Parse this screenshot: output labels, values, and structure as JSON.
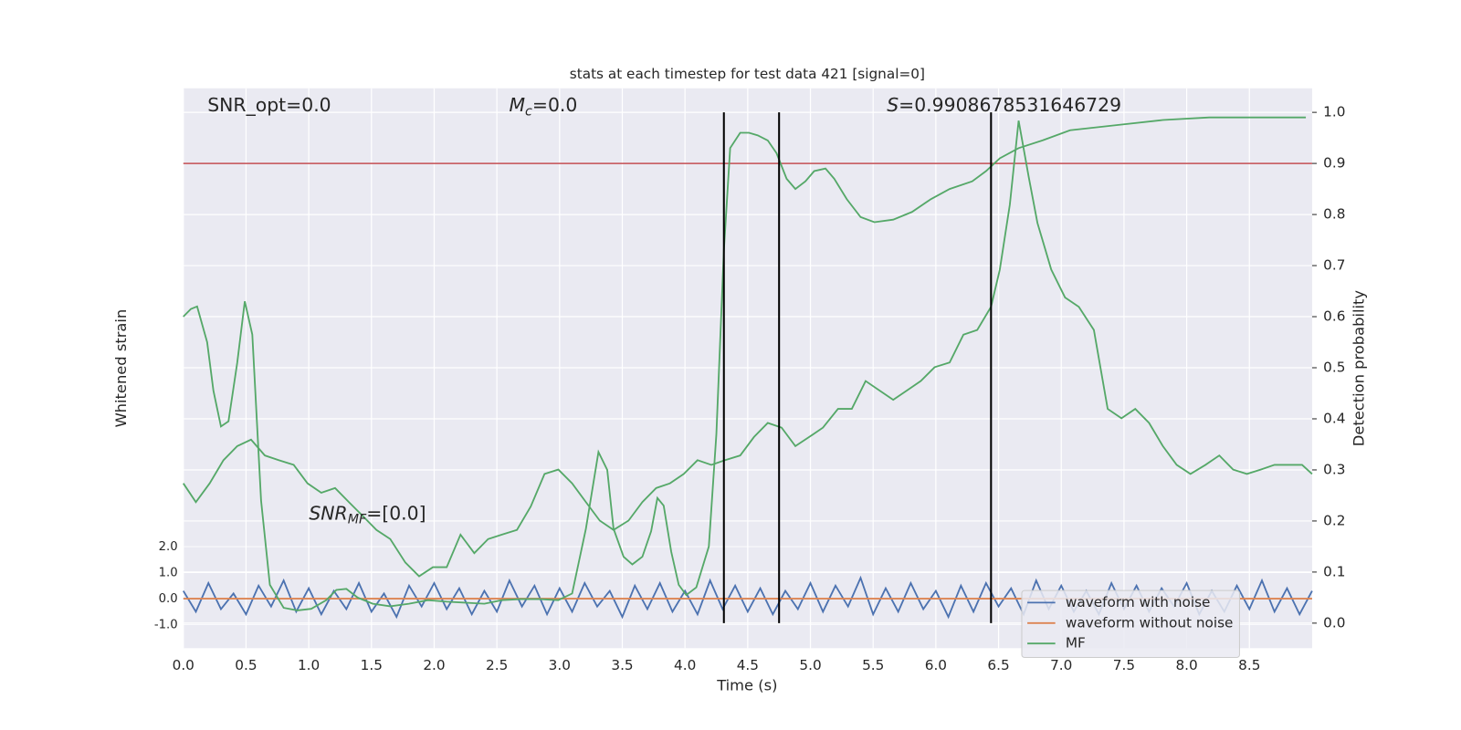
{
  "chart_data": {
    "type": "line",
    "title": "stats at each timestep for test data 421 [signal=0]",
    "xlabel": "Time (s)",
    "ylabel": "Whitened strain",
    "y2label": "Detection probability",
    "xlim": [
      0,
      9.0
    ],
    "xticks": [
      {
        "value": 0,
        "label": "0.0"
      },
      0.5,
      {
        "value": 1,
        "label": "1.0"
      },
      1.5,
      {
        "value": 2,
        "label": "2.0"
      },
      2.5,
      {
        "value": 3,
        "label": "3.0"
      },
      3.5,
      {
        "value": 4,
        "label": "4.0"
      },
      4.5,
      {
        "value": 5,
        "label": "5.0"
      },
      5.5,
      {
        "value": 6,
        "label": "6.0"
      },
      6.5,
      {
        "value": 7,
        "label": "7.0"
      },
      7.5,
      {
        "value": 8,
        "label": "8.0"
      },
      8.5
    ],
    "ylim": [
      -1.9,
      19.6
    ],
    "yticks": [
      {
        "value": -1,
        "label": "-1.0"
      },
      {
        "value": 0,
        "label": "0.0"
      },
      {
        "value": 1,
        "label": "1.0"
      },
      {
        "value": 2,
        "label": "2.0"
      }
    ],
    "y2lim": [
      -0.049,
      1.047
    ],
    "y2ticks": [
      {
        "value": 0,
        "label": "0.0"
      },
      0.1,
      0.2,
      0.3,
      0.4,
      0.5,
      0.6,
      0.7,
      0.8,
      0.9,
      {
        "value": 1,
        "label": "1.0"
      }
    ],
    "grid": true,
    "legend": "lower right",
    "series": [
      {
        "name": "waveform with noise",
        "color": "#4c72b0",
        "x": [
          0.0,
          0.1,
          0.2,
          0.3,
          0.4,
          0.5,
          0.6,
          0.7,
          0.8,
          0.9,
          1.0,
          1.1,
          1.2,
          1.3,
          1.4,
          1.5,
          1.6,
          1.7,
          1.8,
          1.9,
          2.0,
          2.1,
          2.2,
          2.3,
          2.4,
          2.5,
          2.6,
          2.7,
          2.8,
          2.9,
          3.0,
          3.1,
          3.2,
          3.3,
          3.4,
          3.5,
          3.6,
          3.7,
          3.8,
          3.9,
          4.0,
          4.1,
          4.2,
          4.3,
          4.4,
          4.5,
          4.6,
          4.7,
          4.8,
          4.9,
          5.0,
          5.1,
          5.2,
          5.3,
          5.4,
          5.5,
          5.6,
          5.7,
          5.8,
          5.9,
          6.0,
          6.1,
          6.2,
          6.3,
          6.4,
          6.5,
          6.6,
          6.7,
          6.8,
          6.9,
          7.0,
          7.1,
          7.2,
          7.3,
          7.4,
          7.5,
          7.6,
          7.7,
          7.8,
          7.9,
          8.0,
          8.1,
          8.2,
          8.3,
          8.4,
          8.5,
          8.6,
          8.7,
          8.8,
          8.9,
          9.0
        ],
        "values": [
          0.3,
          -0.5,
          0.6,
          -0.4,
          0.2,
          -0.6,
          0.5,
          -0.3,
          0.7,
          -0.5,
          0.4,
          -0.6,
          0.3,
          -0.4,
          0.6,
          -0.5,
          0.2,
          -0.7,
          0.5,
          -0.3,
          0.6,
          -0.4,
          0.4,
          -0.6,
          0.3,
          -0.5,
          0.7,
          -0.3,
          0.5,
          -0.6,
          0.4,
          -0.5,
          0.6,
          -0.3,
          0.3,
          -0.7,
          0.5,
          -0.4,
          0.6,
          -0.5,
          0.3,
          -0.6,
          0.7,
          -0.4,
          0.5,
          -0.5,
          0.4,
          -0.6,
          0.3,
          -0.4,
          0.6,
          -0.5,
          0.5,
          -0.3,
          0.8,
          -0.6,
          0.4,
          -0.5,
          0.6,
          -0.4,
          0.3,
          -0.7,
          0.5,
          -0.5,
          0.6,
          -0.3,
          0.4,
          -0.6,
          0.7,
          -0.4,
          0.5,
          -0.5,
          0.3,
          -0.6,
          0.6,
          -0.4,
          0.5,
          -0.5,
          0.4,
          -0.3,
          0.6,
          -0.6,
          0.3,
          -0.5,
          0.5,
          -0.4,
          0.7,
          -0.5,
          0.4,
          -0.6,
          0.3
        ]
      },
      {
        "name": "waveform without noise",
        "color": "#dd8452",
        "x": [
          0,
          9.0
        ],
        "values": [
          0,
          0
        ]
      },
      {
        "name": "MF",
        "color": "#55a868",
        "x": [
          0,
          0.1,
          0.21,
          0.32,
          0.43,
          0.54,
          0.65,
          0.76,
          0.88,
          0.99,
          1.1,
          1.21,
          1.32,
          1.43,
          1.54,
          1.65,
          1.77,
          1.88,
          1.99,
          2.1,
          2.21,
          2.32,
          2.43,
          2.54,
          2.66,
          2.77,
          2.88,
          2.99,
          3.1,
          3.21,
          3.32,
          3.43,
          3.55,
          3.66,
          3.77,
          3.88,
          3.99,
          4.1,
          4.21,
          4.32,
          4.44,
          4.55,
          4.66,
          4.77,
          4.88,
          4.99,
          5.1,
          5.22,
          5.33,
          5.44,
          5.55,
          5.66,
          5.77,
          5.88,
          5.99,
          6.11,
          6.22,
          6.33,
          6.44,
          6.51,
          6.59,
          6.66,
          6.74,
          6.81,
          6.92,
          7.03,
          7.14,
          7.26,
          7.37,
          7.48,
          7.59,
          7.7,
          7.81,
          7.92,
          8.03,
          8.15,
          8.26,
          8.37,
          8.48,
          8.59,
          8.7,
          8.81,
          8.92,
          9.0
        ],
        "values": [
          4.43,
          3.71,
          4.43,
          5.32,
          5.86,
          6.11,
          5.5,
          5.32,
          5.14,
          4.43,
          4.07,
          4.25,
          3.71,
          3.18,
          2.64,
          2.29,
          1.39,
          0.86,
          1.21,
          1.21,
          2.46,
          1.75,
          2.29,
          2.46,
          2.64,
          3.54,
          4.79,
          4.96,
          4.43,
          3.71,
          3.0,
          2.64,
          3.0,
          3.71,
          4.25,
          4.43,
          4.79,
          5.32,
          5.14,
          5.32,
          5.5,
          6.21,
          6.75,
          6.57,
          5.86,
          6.21,
          6.57,
          7.29,
          7.29,
          8.36,
          8.0,
          7.64,
          8.0,
          8.36,
          8.89,
          9.07,
          10.14,
          10.32,
          11.21,
          12.64,
          15.14,
          18.36,
          16.21,
          14.43,
          12.64,
          11.57,
          11.21,
          10.32,
          7.29,
          6.93,
          7.29,
          6.75,
          5.86,
          5.14,
          4.79,
          5.14,
          5.5,
          4.96,
          4.79,
          4.96,
          5.14,
          5.14,
          5.14,
          4.79
        ]
      },
      {
        "color": "#55a868",
        "axis": "y2",
        "x": [
          0,
          0.06,
          0.11,
          0.19,
          0.24,
          0.3,
          0.36,
          0.43,
          0.49,
          0.55,
          0.62,
          0.69,
          0.8,
          0.91,
          1.02,
          1.14,
          1.22,
          1.3,
          1.39,
          1.51,
          1.65,
          1.8,
          1.95,
          2.1,
          2.25,
          2.4,
          2.54,
          2.69,
          2.84,
          2.99,
          3.1,
          3.21,
          3.31,
          3.38,
          3.43,
          3.51,
          3.58,
          3.66,
          3.73,
          3.78,
          3.83,
          3.89,
          3.95,
          4.01,
          4.09,
          4.19,
          4.25,
          4.31,
          4.36,
          4.44,
          4.51,
          4.58,
          4.66,
          4.73,
          4.81,
          4.88,
          4.96,
          5.03,
          5.12,
          5.19,
          5.29,
          5.4,
          5.51,
          5.66,
          5.81,
          5.96,
          6.11,
          6.29,
          6.4,
          6.51,
          6.66,
          6.85,
          7.07,
          7.44,
          7.81,
          8.18,
          8.55,
          8.95
        ],
        "values": [
          0.6,
          0.615,
          0.62,
          0.55,
          0.455,
          0.385,
          0.395,
          0.51,
          0.63,
          0.565,
          0.24,
          0.075,
          0.03,
          0.025,
          0.028,
          0.045,
          0.065,
          0.067,
          0.05,
          0.038,
          0.033,
          0.038,
          0.045,
          0.042,
          0.04,
          0.038,
          0.045,
          0.047,
          0.047,
          0.045,
          0.058,
          0.185,
          0.335,
          0.3,
          0.185,
          0.13,
          0.115,
          0.13,
          0.18,
          0.245,
          0.23,
          0.14,
          0.075,
          0.055,
          0.07,
          0.15,
          0.37,
          0.73,
          0.93,
          0.96,
          0.96,
          0.955,
          0.945,
          0.92,
          0.87,
          0.85,
          0.865,
          0.885,
          0.89,
          0.87,
          0.83,
          0.795,
          0.785,
          0.79,
          0.805,
          0.83,
          0.85,
          0.865,
          0.885,
          0.91,
          0.93,
          0.945,
          0.965,
          0.975,
          0.985,
          0.99,
          0.99,
          0.99
        ]
      }
    ],
    "hlines": [
      {
        "value": 0.9,
        "axis": "y2",
        "color": "#c44e52"
      }
    ],
    "vlines": {
      "values": [
        4.31,
        4.75,
        6.44
      ],
      "color": "#000000"
    },
    "annotations": [
      {
        "parts": [
          {
            "text": "SNR_opt=0.0"
          }
        ]
      },
      {
        "parts": [
          {
            "text": "M",
            "style": "italic"
          },
          {
            "text": "c",
            "style": "italic-sub"
          },
          {
            "text": "=0.0"
          }
        ]
      },
      {
        "parts": [
          {
            "text": "S",
            "style": "italic"
          },
          {
            "text": "=0.9908678531646729"
          }
        ]
      },
      {
        "parts": [
          {
            "text": "SNR",
            "style": "italic"
          },
          {
            "text": "MF",
            "style": "italic-sub"
          },
          {
            "text": "=[0.0]"
          }
        ]
      }
    ]
  }
}
